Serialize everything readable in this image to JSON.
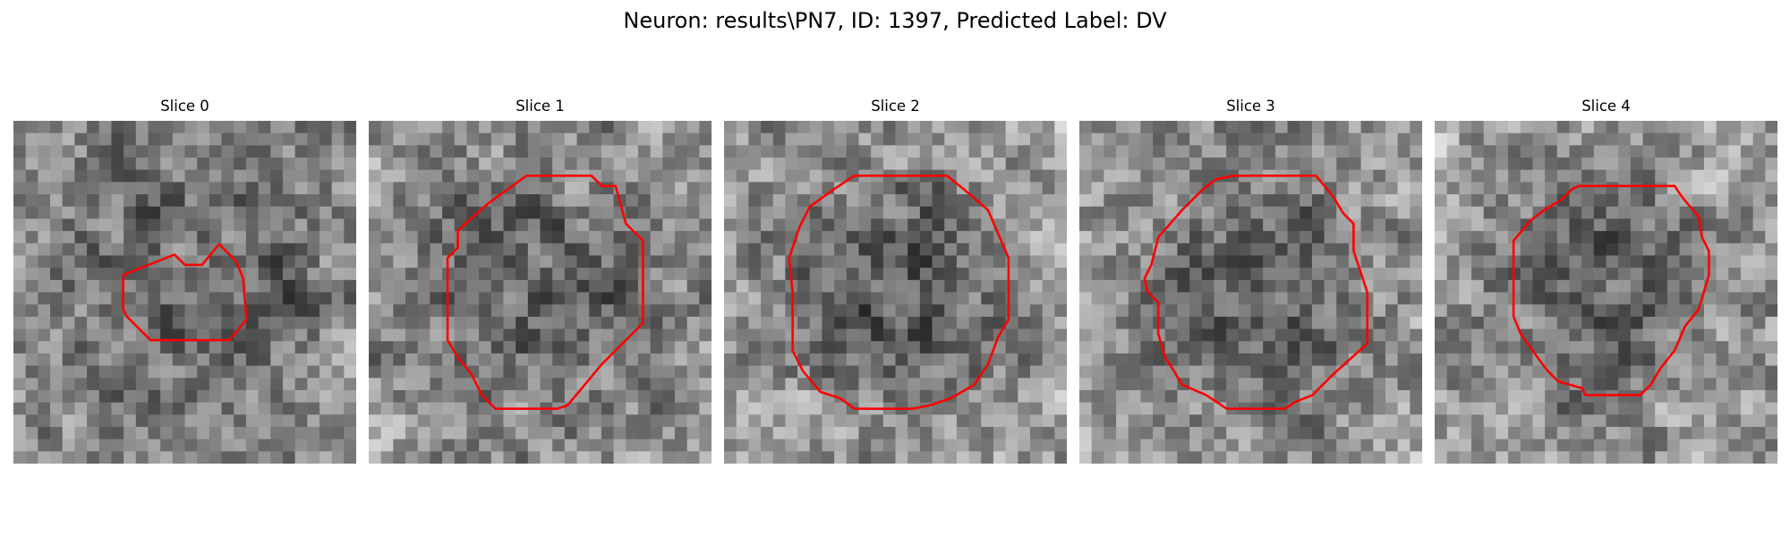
{
  "figure": {
    "title": "Neuron: results\\PN7, ID: 1397, Predicted Label: DV",
    "contour_color": "#ff0000",
    "background_color": "#ffffff"
  },
  "panels": [
    {
      "title": "Slice 0",
      "seed": 11,
      "centerDark": 0.32,
      "radius": 0.55,
      "contour": [
        [
          0.32,
          0.45
        ],
        [
          0.47,
          0.39
        ],
        [
          0.5,
          0.42
        ],
        [
          0.55,
          0.42
        ],
        [
          0.6,
          0.36
        ],
        [
          0.65,
          0.41
        ],
        [
          0.67,
          0.46
        ],
        [
          0.68,
          0.58
        ],
        [
          0.63,
          0.64
        ],
        [
          0.6,
          0.64
        ],
        [
          0.4,
          0.64
        ],
        [
          0.37,
          0.61
        ],
        [
          0.33,
          0.57
        ],
        [
          0.32,
          0.55
        ]
      ]
    },
    {
      "title": "Slice 1",
      "seed": 23,
      "centerDark": 0.3,
      "radius": 0.4,
      "contour": [
        [
          0.26,
          0.32
        ],
        [
          0.35,
          0.24
        ],
        [
          0.46,
          0.16
        ],
        [
          0.65,
          0.16
        ],
        [
          0.68,
          0.19
        ],
        [
          0.72,
          0.19
        ],
        [
          0.75,
          0.3
        ],
        [
          0.8,
          0.35
        ],
        [
          0.8,
          0.59
        ],
        [
          0.68,
          0.71
        ],
        [
          0.63,
          0.77
        ],
        [
          0.58,
          0.83
        ],
        [
          0.55,
          0.84
        ],
        [
          0.5,
          0.84
        ],
        [
          0.37,
          0.84
        ],
        [
          0.33,
          0.8
        ],
        [
          0.3,
          0.74
        ],
        [
          0.26,
          0.69
        ],
        [
          0.23,
          0.64
        ],
        [
          0.23,
          0.4
        ],
        [
          0.26,
          0.37
        ]
      ]
    },
    {
      "title": "Slice 2",
      "seed": 37,
      "centerDark": 0.22,
      "radius": 0.33,
      "contour": [
        [
          0.25,
          0.25
        ],
        [
          0.32,
          0.2
        ],
        [
          0.38,
          0.16
        ],
        [
          0.65,
          0.16
        ],
        [
          0.7,
          0.2
        ],
        [
          0.77,
          0.26
        ],
        [
          0.8,
          0.33
        ],
        [
          0.83,
          0.4
        ],
        [
          0.83,
          0.58
        ],
        [
          0.8,
          0.63
        ],
        [
          0.77,
          0.71
        ],
        [
          0.73,
          0.77
        ],
        [
          0.66,
          0.81
        ],
        [
          0.6,
          0.83
        ],
        [
          0.55,
          0.84
        ],
        [
          0.45,
          0.84
        ],
        [
          0.38,
          0.84
        ],
        [
          0.34,
          0.81
        ],
        [
          0.28,
          0.79
        ],
        [
          0.23,
          0.73
        ],
        [
          0.2,
          0.67
        ],
        [
          0.2,
          0.5
        ],
        [
          0.19,
          0.4
        ],
        [
          0.22,
          0.31
        ]
      ]
    },
    {
      "title": "Slice 3",
      "seed": 53,
      "centerDark": 0.28,
      "radius": 0.36,
      "contour": [
        [
          0.23,
          0.34
        ],
        [
          0.3,
          0.26
        ],
        [
          0.36,
          0.2
        ],
        [
          0.4,
          0.17
        ],
        [
          0.45,
          0.16
        ],
        [
          0.69,
          0.16
        ],
        [
          0.74,
          0.22
        ],
        [
          0.77,
          0.27
        ],
        [
          0.8,
          0.3
        ],
        [
          0.8,
          0.38
        ],
        [
          0.82,
          0.44
        ],
        [
          0.84,
          0.5
        ],
        [
          0.84,
          0.65
        ],
        [
          0.74,
          0.74
        ],
        [
          0.68,
          0.8
        ],
        [
          0.63,
          0.82
        ],
        [
          0.6,
          0.84
        ],
        [
          0.43,
          0.84
        ],
        [
          0.37,
          0.8
        ],
        [
          0.3,
          0.77
        ],
        [
          0.27,
          0.72
        ],
        [
          0.25,
          0.69
        ],
        [
          0.23,
          0.62
        ],
        [
          0.23,
          0.53
        ],
        [
          0.2,
          0.5
        ],
        [
          0.19,
          0.46
        ],
        [
          0.21,
          0.42
        ],
        [
          0.22,
          0.38
        ]
      ]
    },
    {
      "title": "Slice 4",
      "seed": 71,
      "centerDark": 0.27,
      "radius": 0.34,
      "contour": [
        [
          0.23,
          0.35
        ],
        [
          0.28,
          0.29
        ],
        [
          0.32,
          0.26
        ],
        [
          0.37,
          0.23
        ],
        [
          0.4,
          0.2
        ],
        [
          0.42,
          0.19
        ],
        [
          0.7,
          0.19
        ],
        [
          0.72,
          0.22
        ],
        [
          0.77,
          0.28
        ],
        [
          0.78,
          0.34
        ],
        [
          0.8,
          0.38
        ],
        [
          0.8,
          0.41
        ],
        [
          0.8,
          0.45
        ],
        [
          0.77,
          0.55
        ],
        [
          0.73,
          0.6
        ],
        [
          0.7,
          0.67
        ],
        [
          0.66,
          0.72
        ],
        [
          0.63,
          0.77
        ],
        [
          0.6,
          0.8
        ],
        [
          0.44,
          0.8
        ],
        [
          0.43,
          0.78
        ],
        [
          0.36,
          0.76
        ],
        [
          0.33,
          0.73
        ],
        [
          0.3,
          0.69
        ],
        [
          0.25,
          0.62
        ],
        [
          0.23,
          0.57
        ]
      ]
    }
  ]
}
